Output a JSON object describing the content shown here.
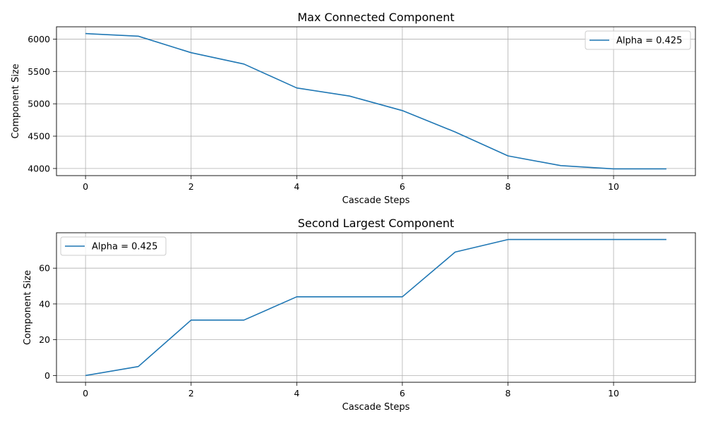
{
  "chart_data": [
    {
      "type": "line",
      "title": "Max Connected Component",
      "xlabel": "Cascade Steps",
      "ylabel": "Component Size",
      "x": [
        0,
        1,
        2,
        3,
        4,
        5,
        6,
        7,
        8,
        9,
        10,
        11
      ],
      "series": [
        {
          "name": "Alpha = 0.425",
          "color": "#1f77b4",
          "values": [
            6085,
            6045,
            5790,
            5615,
            5245,
            5120,
            4895,
            4565,
            4195,
            4045,
            3995,
            3995
          ]
        }
      ],
      "xlim": [
        -0.55,
        11.55
      ],
      "ylim": [
        3890,
        6190
      ],
      "xticks": [
        0,
        2,
        4,
        6,
        8,
        10
      ],
      "yticks": [
        4000,
        4500,
        5000,
        5500,
        6000
      ],
      "grid": true,
      "legend_position": "upper right"
    },
    {
      "type": "line",
      "title": "Second Largest Component",
      "xlabel": "Cascade Steps",
      "ylabel": "Component Size",
      "x": [
        0,
        1,
        2,
        3,
        4,
        5,
        6,
        7,
        8,
        9,
        10,
        11
      ],
      "series": [
        {
          "name": "Alpha = 0.425",
          "color": "#1f77b4",
          "values": [
            0,
            5,
            31,
            31,
            44,
            44,
            44,
            69,
            76,
            76,
            76,
            76
          ]
        }
      ],
      "xlim": [
        -0.55,
        11.55
      ],
      "ylim": [
        -3.8,
        79.8
      ],
      "xticks": [
        0,
        2,
        4,
        6,
        8,
        10
      ],
      "yticks": [
        0,
        20,
        40,
        60
      ],
      "grid": true,
      "legend_position": "upper left"
    }
  ]
}
